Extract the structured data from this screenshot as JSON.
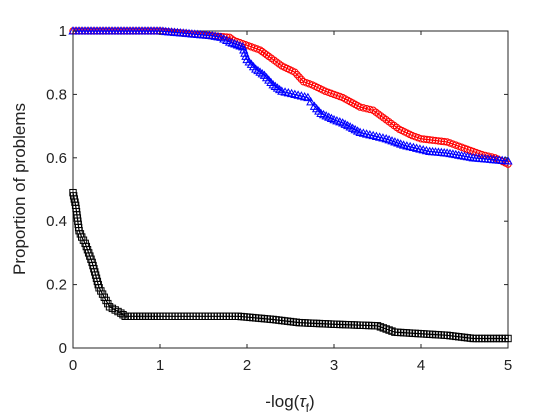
{
  "chart_data": {
    "type": "line",
    "title": "",
    "xlabel": "-log(",
    "xlabel_symbol": "τ",
    "xlabel_subscript": "f",
    "xlabel_tail": ")",
    "ylabel": "Proportion of problems",
    "xlim": [
      0,
      5
    ],
    "ylim": [
      0,
      1
    ],
    "xticks": [
      0,
      1,
      2,
      3,
      4,
      5
    ],
    "xtick_labels": [
      "0",
      "1",
      "2",
      "3",
      "4",
      "5"
    ],
    "yticks": [
      0,
      0.2,
      0.4,
      0.6,
      0.8,
      1
    ],
    "ytick_labels": [
      "0",
      "0.2",
      "0.4",
      "0.6",
      "0.8",
      "1"
    ],
    "grid": false,
    "legend": "none",
    "series": [
      {
        "color": "#ff0000",
        "marker": "circle",
        "points": [
          [
            0,
            1.0
          ],
          [
            1.0,
            1.0
          ],
          [
            1.2,
            0.995
          ],
          [
            1.4,
            0.99
          ],
          [
            1.6,
            0.985
          ],
          [
            1.8,
            0.98
          ],
          [
            1.85,
            0.97
          ],
          [
            1.95,
            0.96
          ],
          [
            2.05,
            0.95
          ],
          [
            2.15,
            0.94
          ],
          [
            2.25,
            0.92
          ],
          [
            2.4,
            0.89
          ],
          [
            2.55,
            0.87
          ],
          [
            2.65,
            0.84
          ],
          [
            2.75,
            0.83
          ],
          [
            2.9,
            0.81
          ],
          [
            3.0,
            0.8
          ],
          [
            3.1,
            0.79
          ],
          [
            3.3,
            0.76
          ],
          [
            3.45,
            0.75
          ],
          [
            3.6,
            0.72
          ],
          [
            3.75,
            0.69
          ],
          [
            3.9,
            0.67
          ],
          [
            4.0,
            0.66
          ],
          [
            4.3,
            0.65
          ],
          [
            4.5,
            0.63
          ],
          [
            4.7,
            0.61
          ],
          [
            4.85,
            0.6
          ],
          [
            5.0,
            0.58
          ]
        ]
      },
      {
        "color": "#0000ff",
        "marker": "triangle",
        "points": [
          [
            0,
            1.0
          ],
          [
            1.0,
            1.0
          ],
          [
            1.2,
            0.995
          ],
          [
            1.4,
            0.99
          ],
          [
            1.6,
            0.985
          ],
          [
            1.7,
            0.98
          ],
          [
            1.8,
            0.965
          ],
          [
            1.95,
            0.95
          ],
          [
            2.0,
            0.91
          ],
          [
            2.1,
            0.88
          ],
          [
            2.2,
            0.86
          ],
          [
            2.3,
            0.83
          ],
          [
            2.4,
            0.81
          ],
          [
            2.55,
            0.8
          ],
          [
            2.7,
            0.79
          ],
          [
            2.75,
            0.77
          ],
          [
            2.85,
            0.74
          ],
          [
            3.0,
            0.72
          ],
          [
            3.1,
            0.71
          ],
          [
            3.3,
            0.68
          ],
          [
            3.45,
            0.67
          ],
          [
            3.6,
            0.66
          ],
          [
            3.7,
            0.65
          ],
          [
            3.8,
            0.64
          ],
          [
            3.95,
            0.63
          ],
          [
            4.1,
            0.62
          ],
          [
            4.3,
            0.615
          ],
          [
            4.6,
            0.6
          ],
          [
            5.0,
            0.59
          ]
        ]
      },
      {
        "color": "#000000",
        "marker": "square",
        "points": [
          [
            0,
            0.49
          ],
          [
            0.03,
            0.45
          ],
          [
            0.05,
            0.41
          ],
          [
            0.07,
            0.37
          ],
          [
            0.1,
            0.35
          ],
          [
            0.14,
            0.33
          ],
          [
            0.18,
            0.3
          ],
          [
            0.22,
            0.27
          ],
          [
            0.26,
            0.23
          ],
          [
            0.3,
            0.19
          ],
          [
            0.34,
            0.17
          ],
          [
            0.38,
            0.15
          ],
          [
            0.42,
            0.13
          ],
          [
            0.55,
            0.11
          ],
          [
            0.6,
            0.1
          ],
          [
            1.0,
            0.1
          ],
          [
            1.9,
            0.1
          ],
          [
            2.3,
            0.09
          ],
          [
            2.6,
            0.08
          ],
          [
            3.0,
            0.075
          ],
          [
            3.5,
            0.07
          ],
          [
            3.7,
            0.05
          ],
          [
            4.0,
            0.045
          ],
          [
            4.3,
            0.04
          ],
          [
            4.6,
            0.03
          ],
          [
            5.0,
            0.03
          ]
        ]
      }
    ]
  }
}
